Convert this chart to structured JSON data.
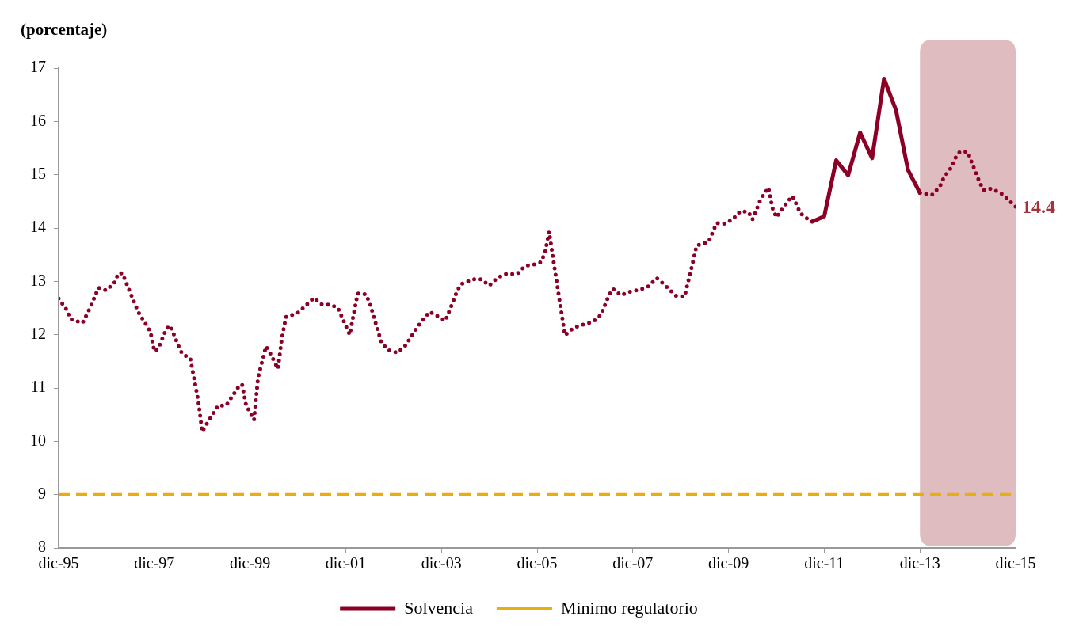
{
  "chart_data": {
    "type": "line",
    "ylabel": "(porcentaje)",
    "xlim": [
      "1995-12",
      "2015-12"
    ],
    "xticks": [
      {
        "value": "1995-12",
        "label": "dic-95"
      },
      {
        "value": "1997-12",
        "label": "dic-97"
      },
      {
        "value": "1999-12",
        "label": "dic-99"
      },
      {
        "value": "2001-12",
        "label": "dic-01"
      },
      {
        "value": "2003-12",
        "label": "dic-03"
      },
      {
        "value": "2005-12",
        "label": "dic-05"
      },
      {
        "value": "2007-12",
        "label": "dic-07"
      },
      {
        "value": "2009-12",
        "label": "dic-09"
      },
      {
        "value": "2011-12",
        "label": "dic-11"
      },
      {
        "value": "2013-12",
        "label": "dic-13"
      },
      {
        "value": "2015-12",
        "label": "dic-15"
      }
    ],
    "ylim": [
      8,
      17
    ],
    "yticks": [
      8,
      9,
      10,
      11,
      12,
      13,
      14,
      15,
      16,
      17
    ],
    "series": [
      {
        "color": "#8c0026",
        "line_style": "dotted",
        "x": [
          "1995-12",
          "1996-02",
          "1996-03",
          "1996-06",
          "1996-08",
          "1996-10",
          "1996-12",
          "1997-02",
          "1997-03",
          "1997-04",
          "1997-06",
          "1997-08",
          "1997-11",
          "1997-12",
          "1998-01",
          "1998-03",
          "1998-04",
          "1998-06",
          "1998-07",
          "1998-09",
          "1998-10",
          "1998-11",
          "1998-12",
          "1999-01",
          "1999-04",
          "1999-06",
          "1999-09",
          "1999-10",
          "1999-11",
          "2000-01",
          "2000-02",
          "2000-04",
          "2000-05",
          "2000-07",
          "2000-08",
          "2000-09",
          "2000-12",
          "2001-04",
          "2001-06",
          "2001-08",
          "2001-10",
          "2002-01",
          "2002-02",
          "2002-03",
          "2002-05",
          "2002-06",
          "2002-09",
          "2002-11",
          "2003-01",
          "2003-03",
          "2003-06",
          "2003-09",
          "2003-11",
          "2004-01",
          "2004-04",
          "2004-05",
          "2004-08",
          "2004-10",
          "2004-12",
          "2005-02",
          "2005-04",
          "2005-07",
          "2005-09",
          "2005-11",
          "2006-01",
          "2006-02",
          "2006-03",
          "2006-05",
          "2006-07",
          "2006-09",
          "2006-11",
          "2007-02",
          "2007-04",
          "2007-06",
          "2007-07",
          "2007-09",
          "2007-11",
          "2008-02",
          "2008-04",
          "2008-06",
          "2008-07",
          "2008-11",
          "2009-01",
          "2009-03",
          "2009-04",
          "2009-07",
          "2009-09",
          "2009-11",
          "2010-01",
          "2010-03",
          "2010-05",
          "2010-06",
          "2010-08",
          "2010-10",
          "2010-11",
          "2010-12",
          "2011-02",
          "2011-04",
          "2011-05",
          "2011-06",
          "2011-08",
          "2011-09",
          "2012-06",
          "2013-12",
          "2014-03",
          "2014-05",
          "2014-06",
          "2014-08",
          "2014-09",
          "2014-10",
          "2014-12",
          "2015-01",
          "2015-02",
          "2015-03",
          "2015-04",
          "2015-06",
          "2015-09",
          "2015-10",
          "2015-12"
        ],
        "values": [
          12.68,
          12.47,
          12.29,
          12.22,
          12.52,
          12.88,
          12.83,
          12.98,
          13.15,
          13.15,
          12.78,
          12.42,
          12.06,
          11.69,
          11.74,
          12.11,
          12.17,
          11.8,
          11.64,
          11.56,
          11.17,
          10.77,
          10.18,
          10.31,
          10.67,
          10.67,
          11.01,
          11.07,
          10.68,
          10.4,
          11.19,
          11.78,
          11.66,
          11.36,
          11.94,
          12.33,
          12.41,
          12.69,
          12.57,
          12.56,
          12.51,
          12.0,
          12.39,
          12.77,
          12.76,
          12.6,
          11.84,
          11.7,
          11.66,
          11.8,
          12.15,
          12.43,
          12.35,
          12.26,
          12.83,
          12.95,
          13.04,
          13.04,
          12.92,
          13.06,
          13.14,
          13.14,
          13.29,
          13.31,
          13.36,
          13.55,
          13.93,
          12.94,
          11.99,
          12.12,
          12.18,
          12.24,
          12.37,
          12.74,
          12.86,
          12.74,
          12.8,
          12.85,
          12.91,
          13.06,
          13.0,
          12.72,
          12.72,
          13.34,
          13.67,
          13.74,
          14.09,
          14.08,
          14.16,
          14.32,
          14.3,
          14.16,
          14.53,
          14.76,
          14.38,
          14.2,
          14.42,
          14.6,
          14.45,
          14.28,
          14.16,
          14.12,
          null,
          14.66,
          14.62,
          14.78,
          14.95,
          15.15,
          15.33,
          15.43,
          15.43,
          15.23,
          15.04,
          14.85,
          14.71,
          14.74,
          14.62,
          14.54,
          14.4
        ]
      },
      {
        "name": "Solvencia",
        "color": "#8c0026",
        "line_style": "solid",
        "x": [
          "2011-09",
          "2011-12",
          "2012-03",
          "2012-06",
          "2012-09",
          "2012-12",
          "2013-03",
          "2013-06",
          "2013-09",
          "2013-12"
        ],
        "values": [
          14.12,
          14.22,
          15.27,
          14.99,
          15.79,
          15.31,
          16.8,
          16.21,
          15.09,
          14.66
        ]
      }
    ],
    "ref_lines": [
      {
        "axis": "y",
        "value": 9,
        "label": "Mínimo regulatorio",
        "color": "#e8ad0e",
        "line_style": "dashed"
      }
    ],
    "bands": [
      {
        "axis": "x",
        "from": "2013-12",
        "to": "2015-12",
        "color": "#dfbcbf"
      }
    ],
    "annotations": [
      {
        "text": "14.4",
        "x": "2015-12",
        "y": 14.4
      }
    ],
    "marker": "none",
    "grid": false,
    "legend": "bottom"
  }
}
